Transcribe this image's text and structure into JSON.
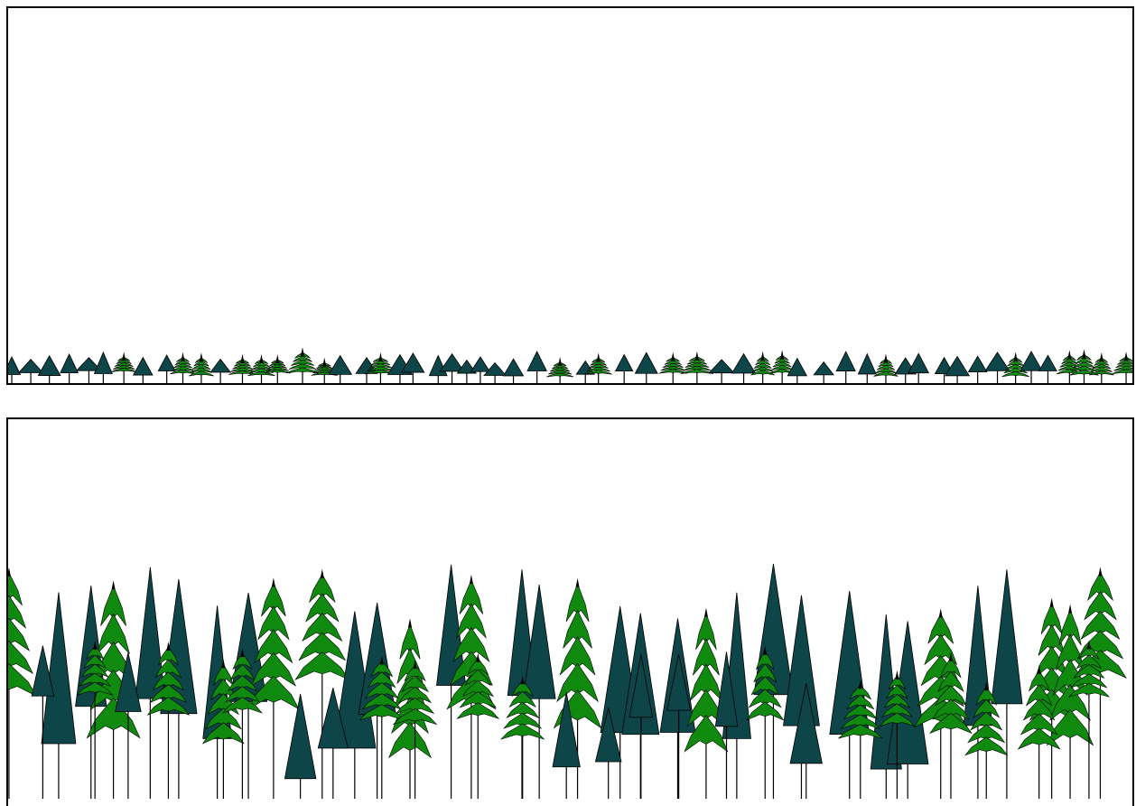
{
  "colors": {
    "conifer_dark": "#0e4548",
    "conifer_green": "#0f8a0f",
    "outline": "#000000",
    "background": "#ffffff"
  },
  "panels": [
    {
      "name": "early-stand",
      "tree_scale": 0.12
    },
    {
      "name": "mature-stand",
      "tree_scale": 1.0
    }
  ]
}
